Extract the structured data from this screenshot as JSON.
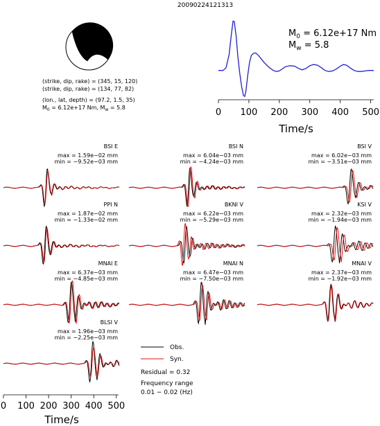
{
  "title": "20090224121313",
  "source_params": {
    "line1": "(strike, dip, rake) = (345, 15, 120)",
    "line2": "(strike, dip, rake) = (134, 77, 82)",
    "line3": "(lon., lat, depth) = (97.2, 1.5, 35)",
    "m0_prefix": "M",
    "m0_sub": "0",
    "m0_value": " = 6.12e+17 Nm, M",
    "mw_sub": "w",
    "mw_value": " = 5.8"
  },
  "stf_labels": {
    "m0_prefix": "M",
    "m0_sub": "0",
    "m0_value": " = 6.12e+17 Nm",
    "mw_prefix": "M",
    "mw_sub": "w",
    "mw_value": " = 5.8"
  },
  "legend": {
    "obs": "Obs.",
    "syn": "Syn.",
    "residual": "Residual = 0.32",
    "freq_title": "Frequency range",
    "freq_value": "0.01 − 0.02 (Hz)"
  },
  "colors": {
    "observed": "#000000",
    "synthetic": "#dd1111",
    "stf": "#1f1fd6"
  },
  "chart_data": [
    {
      "type": "line",
      "name": "source-time-function",
      "xlabel": "Time/s",
      "xlim": [
        0,
        510
      ],
      "xticks": [
        0,
        100,
        200,
        300,
        400,
        500
      ],
      "ylim": [
        -0.45,
        1.05
      ],
      "series": [
        {
          "name": "",
          "x": [
            0,
            15,
            25,
            35,
            42,
            48,
            52,
            58,
            64,
            70,
            76,
            82,
            86,
            90,
            96,
            102,
            108,
            115,
            122,
            130,
            140,
            150,
            160,
            170,
            180,
            190,
            200,
            210,
            220,
            235,
            250,
            262,
            275,
            288,
            300,
            312,
            325,
            338,
            350,
            362,
            375,
            388,
            400,
            410,
            420,
            432,
            445,
            458,
            470,
            482,
            495,
            510
          ],
          "y": [
            0.05,
            0.05,
            0.1,
            0.35,
            0.7,
            0.98,
            0.97,
            0.7,
            0.3,
            0.0,
            -0.25,
            -0.42,
            -0.44,
            -0.35,
            -0.05,
            0.2,
            0.33,
            0.37,
            0.38,
            0.34,
            0.27,
            0.2,
            0.14,
            0.09,
            0.05,
            0.03,
            0.04,
            0.08,
            0.12,
            0.14,
            0.13,
            0.09,
            0.06,
            0.09,
            0.14,
            0.16,
            0.15,
            0.1,
            0.05,
            0.03,
            0.04,
            0.08,
            0.13,
            0.16,
            0.15,
            0.1,
            0.05,
            0.03,
            0.03,
            0.04,
            0.05,
            0.05
          ]
        }
      ]
    },
    {
      "type": "line",
      "name": "waveform-time-axis",
      "xlabel": "Time/s",
      "xlim": [
        0,
        510
      ],
      "xticks": [
        0,
        100,
        200,
        300,
        400,
        500
      ]
    },
    {
      "type": "line",
      "name": "waveform-fits",
      "series": [
        "Obs.",
        "Syn."
      ],
      "stations": [
        {
          "label": "BSI E",
          "max": "max = 1.59e−02 mm",
          "min": "min = −9.52e−03 mm",
          "arrival": 190,
          "amp": 1.0,
          "freq": 0.03,
          "decay": 14,
          "syn_scale": 0.85,
          "syn_shift": 2,
          "coda": 0.25
        },
        {
          "label": "BSI N",
          "max": "max = 6.04e−03 mm",
          "min": "min = −4.24e−03 mm",
          "arrival": 265,
          "amp": 0.95,
          "freq": 0.032,
          "decay": 18,
          "syn_scale": 1.05,
          "syn_shift": 4,
          "coda": 0.3
        },
        {
          "label": "BSI V",
          "max": "max = 6.02e−03 mm",
          "min": "min = −3.51e−03 mm",
          "arrival": 410,
          "amp": 0.9,
          "freq": 0.028,
          "decay": 20,
          "syn_scale": 0.9,
          "syn_shift": 6,
          "coda": 0.35
        },
        {
          "label": "PPI N",
          "max": "max = 1.87e−02 mm",
          "min": "min = −1.33e−02 mm",
          "arrival": 185,
          "amp": 1.0,
          "freq": 0.03,
          "decay": 16,
          "syn_scale": 0.9,
          "syn_shift": 3,
          "coda": 0.25
        },
        {
          "label": "BKNI V",
          "max": "max = 6.22e−03 mm",
          "min": "min = −5.29e−03 mm",
          "arrival": 250,
          "amp": 0.9,
          "freq": 0.034,
          "decay": 22,
          "syn_scale": 1.15,
          "syn_shift": -6,
          "coda": 0.45
        },
        {
          "label": "KSI V",
          "max": "max = 2.32e−03 mm",
          "min": "min = −1.94e−03 mm",
          "arrival": 340,
          "amp": 0.85,
          "freq": 0.03,
          "decay": 40,
          "syn_scale": 0.9,
          "syn_shift": 8,
          "coda": 0.7
        },
        {
          "label": "MNAI E",
          "max": "max = 6.37e−03 mm",
          "min": "min = −4.85e−03 mm",
          "arrival": 295,
          "amp": 1.0,
          "freq": 0.03,
          "decay": 28,
          "syn_scale": 1.05,
          "syn_shift": 4,
          "coda": 0.55
        },
        {
          "label": "MNAI N",
          "max": "max = 6.47e−03 mm",
          "min": "min = −7.50e−03 mm",
          "arrival": 315,
          "amp": 1.0,
          "freq": 0.032,
          "decay": 36,
          "syn_scale": 0.85,
          "syn_shift": 5,
          "coda": 0.75
        },
        {
          "label": "MNAI V",
          "max": "max = 2.37e−03 mm",
          "min": "min = −1.92e−03 mm",
          "arrival": 320,
          "amp": 0.9,
          "freq": 0.03,
          "decay": 34,
          "syn_scale": 1.0,
          "syn_shift": 2,
          "coda": 0.55
        },
        {
          "label": "BLSI V",
          "max": "max = 1.96e−03 mm",
          "min": "min = −2.25e−03 mm",
          "arrival": 390,
          "amp": 1.0,
          "freq": 0.03,
          "decay": 30,
          "syn_scale": 0.75,
          "syn_shift": 3,
          "coda": 0.5
        }
      ]
    }
  ]
}
